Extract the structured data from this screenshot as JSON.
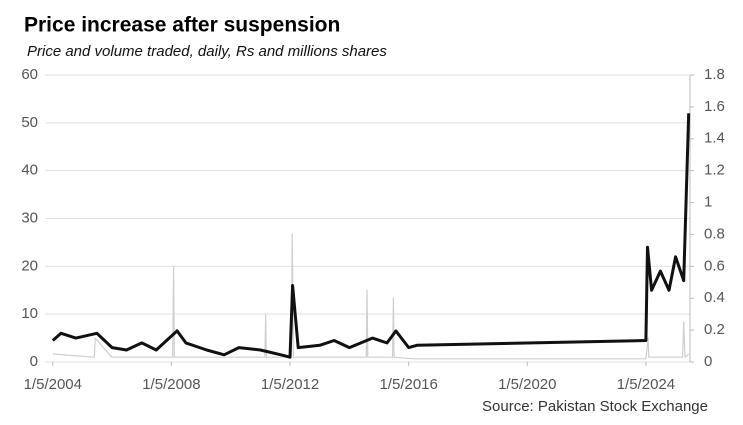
{
  "chart_data": {
    "type": "line",
    "title": "Price increase after suspension",
    "subtitle": "Price and volume traded, daily, Rs and millions shares",
    "source": "Source: Pakistan Stock Exchange",
    "grid": true,
    "xlim": [
      "2003-10-01",
      "2025-07-01"
    ],
    "xticks": [
      {
        "value": "2004-01-05",
        "label": "1/5/2004"
      },
      {
        "value": "2008-01-05",
        "label": "1/5/2008"
      },
      {
        "value": "2012-01-05",
        "label": "1/5/2012"
      },
      {
        "value": "2016-01-05",
        "label": "1/5/2016"
      },
      {
        "value": "2020-01-05",
        "label": "1/5/2020"
      },
      {
        "value": "2024-01-05",
        "label": "1/5/2024"
      }
    ],
    "ylim": [
      0,
      60
    ],
    "yticks": [
      0,
      10,
      20,
      30,
      40,
      50,
      60
    ],
    "y2lim": [
      0,
      1.8
    ],
    "y2ticks": [
      0,
      0.2,
      0.4,
      0.6,
      0.8,
      1,
      1.2,
      1.4,
      1.6,
      1.8
    ],
    "series": [
      {
        "name": "Volume",
        "color": "#cfcfcf",
        "axis": "y2",
        "x": [
          "2004-01-05",
          "2005-06-01",
          "2005-06-10",
          "2006-01-01",
          "2008-01-20",
          "2008-02-01",
          "2008-02-10",
          "2011-03-01",
          "2011-03-10",
          "2011-03-20",
          "2012-01-20",
          "2012-02-01",
          "2012-02-15",
          "2014-08-01",
          "2014-08-10",
          "2014-08-20",
          "2015-06-20",
          "2015-07-01",
          "2015-07-10",
          "2016-03-01",
          "2024-01-05",
          "2024-02-01",
          "2024-02-10",
          "2025-04-01",
          "2025-04-15",
          "2025-05-01",
          "2025-06-15"
        ],
        "values": [
          0.05,
          0.03,
          0.15,
          0.03,
          0.03,
          0.6,
          0.03,
          0.03,
          0.3,
          0.03,
          0.03,
          0.8,
          0.03,
          0.03,
          0.45,
          0.03,
          0.03,
          0.4,
          0.03,
          0.02,
          0.02,
          0.15,
          0.03,
          0.03,
          0.25,
          0.03,
          0.05
        ]
      },
      {
        "name": "Price",
        "color": "#111111",
        "x": [
          "2004-01-05",
          "2004-04-15",
          "2004-10-15",
          "2005-07-01",
          "2006-01-05",
          "2006-07-01",
          "2007-01-05",
          "2007-07-01",
          "2008-03-15",
          "2008-07-01",
          "2009-03-15",
          "2009-10-15",
          "2010-04-15",
          "2011-01-05",
          "2011-09-15",
          "2012-01-05",
          "2012-02-05",
          "2012-04-15",
          "2013-01-05",
          "2013-07-01",
          "2014-01-05",
          "2014-10-15",
          "2015-04-15",
          "2015-08-01",
          "2016-01-05",
          "2016-04-15",
          "2024-01-05",
          "2024-01-25",
          "2024-03-15",
          "2024-07-01",
          "2024-10-15",
          "2025-01-05",
          "2025-04-15",
          "2025-06-15"
        ],
        "values": [
          4.5,
          6,
          5,
          6,
          3,
          2.5,
          4,
          2.5,
          6.5,
          4,
          2.5,
          1.5,
          3,
          2.5,
          1.5,
          1,
          16,
          3,
          3.5,
          4.5,
          3,
          5,
          4,
          6.5,
          3,
          3.5,
          4.5,
          24,
          15,
          19,
          15,
          22,
          17,
          52
        ]
      }
    ]
  }
}
